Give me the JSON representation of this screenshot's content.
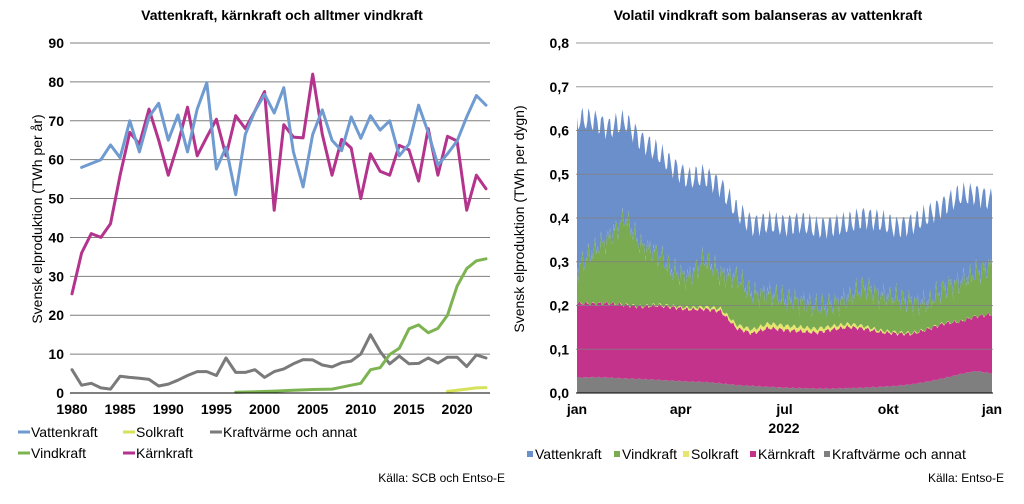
{
  "source_left": "Källa: SCB och Entso-E",
  "source_right": "Källa: Entso-E",
  "chart_data": [
    {
      "type": "line",
      "title": "Vattenkraft, kärnkraft och alltmer vindkraft",
      "xlabel": "",
      "ylabel": "Svensk elproduktion (TWh per år)",
      "xlim": [
        1980,
        2023
      ],
      "ylim": [
        0,
        90
      ],
      "x_ticks": [
        "1980",
        "1985",
        "1990",
        "1995",
        "2000",
        "2005",
        "2010",
        "2015",
        "2020"
      ],
      "y_ticks": [
        "0",
        "10",
        "20",
        "30",
        "40",
        "50",
        "60",
        "70",
        "80",
        "90"
      ],
      "grid": "horizontal",
      "legend_placement": "bottom",
      "series": [
        {
          "name": "Vattenkraft",
          "color": "#6f9bd1",
          "x": [
            1981,
            1983,
            1984,
            1985,
            1986,
            1987,
            1988,
            1989,
            1990,
            1991,
            1992,
            1993,
            1994,
            1995,
            1996,
            1997,
            1998,
            1999,
            2000,
            2001,
            2002,
            2003,
            2004,
            2005,
            2006,
            2007,
            2008,
            2009,
            2010,
            2011,
            2012,
            2013,
            2014,
            2015,
            2016,
            2017,
            2018,
            2019,
            2020,
            2021,
            2022,
            2023
          ],
          "y": [
            58,
            60,
            63.8,
            60.5,
            70,
            62,
            71,
            74.5,
            65,
            71.5,
            62,
            73,
            79.8,
            57.6,
            63.2,
            51,
            66.5,
            72.5,
            76.8,
            72,
            78.5,
            62,
            53,
            66.5,
            72.8,
            65,
            62.3,
            71,
            65.5,
            71.3,
            67.6,
            70,
            61,
            64,
            74,
            67,
            58.6,
            61.5,
            64.8,
            71,
            76.5,
            74
          ]
        },
        {
          "name": "Kärnkraft",
          "color": "#b4338c",
          "x": [
            1980,
            1981,
            1982,
            1983,
            1984,
            1985,
            1986,
            1987,
            1988,
            1989,
            1990,
            1991,
            1992,
            1993,
            1994,
            1995,
            1996,
            1997,
            1998,
            1999,
            2000,
            2001,
            2002,
            2003,
            2004,
            2005,
            2006,
            2007,
            2008,
            2009,
            2010,
            2011,
            2012,
            2013,
            2014,
            2015,
            2016,
            2017,
            2018,
            2019,
            2020,
            2021,
            2022,
            2023
          ],
          "y": [
            25.5,
            36,
            41,
            40,
            43.5,
            56,
            67,
            64,
            73,
            65,
            56,
            64,
            73.5,
            61,
            65.8,
            70.4,
            61,
            71.3,
            68,
            72.5,
            77.5,
            47,
            69,
            65.8,
            65.6,
            82,
            66.5,
            56,
            65.2,
            63,
            50,
            61.5,
            57,
            56,
            63.7,
            62.5,
            54.5,
            68,
            56,
            66,
            64.8,
            47,
            56,
            52.5
          ]
        },
        {
          "name": "Vindkraft",
          "color": "#7db451",
          "x": [
            1997,
            1999,
            2001,
            2003,
            2005,
            2007,
            2008,
            2009,
            2010,
            2011,
            2012,
            2013,
            2014,
            2015,
            2016,
            2017,
            2018,
            2019,
            2020,
            2021,
            2022,
            2023
          ],
          "y": [
            0.2,
            0.3,
            0.5,
            0.7,
            0.9,
            1.0,
            1.5,
            2.0,
            2.5,
            6.0,
            6.5,
            9.9,
            11.5,
            16.5,
            17.5,
            15.5,
            16.6,
            20,
            27.5,
            32,
            34,
            34.5
          ]
        },
        {
          "name": "Solkraft",
          "color": "#d6e35a",
          "x": [
            2019,
            2020,
            2021,
            2022,
            2023
          ],
          "y": [
            0.4,
            0.7,
            1.0,
            1.3,
            1.4
          ]
        },
        {
          "name": "Kraftvärme och annat",
          "color": "#7a7a7a",
          "x": [
            1980,
            1981,
            1982,
            1983,
            1984,
            1985,
            1986,
            1987,
            1988,
            1989,
            1990,
            1991,
            1992,
            1993,
            1994,
            1995,
            1996,
            1997,
            1998,
            1999,
            2000,
            2001,
            2002,
            2003,
            2004,
            2005,
            2006,
            2007,
            2008,
            2009,
            2010,
            2011,
            2012,
            2013,
            2014,
            2015,
            2016,
            2017,
            2018,
            2019,
            2020,
            2021,
            2022,
            2023
          ],
          "y": [
            6,
            2,
            2.5,
            1.3,
            1,
            4.3,
            4,
            3.8,
            3.5,
            1.8,
            2.3,
            3.3,
            4.5,
            5.5,
            5.5,
            4.5,
            9,
            5.3,
            5.3,
            6,
            4,
            5.5,
            6.2,
            7.5,
            8.6,
            8.5,
            7.2,
            6.7,
            7.8,
            8.2,
            10,
            15,
            10.7,
            7.5,
            9.5,
            7.5,
            7.6,
            9,
            7.7,
            9.2,
            9.2,
            6.8,
            9.8,
            9
          ]
        }
      ]
    },
    {
      "type": "area",
      "stacked": true,
      "title": "Volatil vindkraft som balanseras av vattenkraft",
      "xlabel": "2022",
      "ylabel": "Svensk elproduktion (TWh per dygn)",
      "ylim": [
        0,
        0.8
      ],
      "x_ticks": [
        "jan",
        "apr",
        "jul",
        "okt",
        "jan"
      ],
      "y_ticks": [
        "0,0",
        "0,1",
        "0,2",
        "0,3",
        "0,4",
        "0,5",
        "0,6",
        "0,7",
        "0,8"
      ],
      "grid": "horizontal",
      "legend_placement": "bottom",
      "x_weeks": [
        0,
        2,
        4,
        6,
        8,
        10,
        12,
        14,
        16,
        18,
        20,
        22,
        24,
        26,
        28,
        30,
        32,
        34,
        36,
        38,
        40,
        42,
        44,
        46,
        48,
        50,
        52
      ],
      "series": [
        {
          "name": "Kraftvärme och annat",
          "color": "#7f7f7f",
          "values": [
            0.035,
            0.036,
            0.035,
            0.033,
            0.032,
            0.03,
            0.028,
            0.026,
            0.025,
            0.022,
            0.018,
            0.016,
            0.014,
            0.012,
            0.011,
            0.01,
            0.01,
            0.011,
            0.012,
            0.014,
            0.016,
            0.02,
            0.026,
            0.034,
            0.043,
            0.05,
            0.045
          ]
        },
        {
          "name": "Kärnkraft",
          "color": "#c3338c",
          "values": [
            0.17,
            0.168,
            0.17,
            0.168,
            0.165,
            0.17,
            0.168,
            0.165,
            0.167,
            0.165,
            0.13,
            0.12,
            0.135,
            0.132,
            0.13,
            0.128,
            0.135,
            0.14,
            0.135,
            0.125,
            0.12,
            0.115,
            0.12,
            0.125,
            0.12,
            0.125,
            0.135
          ]
        },
        {
          "name": "Solkraft",
          "color": "#e6e66e",
          "values": [
            0.0,
            0.0,
            0.0,
            0.001,
            0.001,
            0.002,
            0.003,
            0.004,
            0.005,
            0.006,
            0.008,
            0.009,
            0.01,
            0.01,
            0.01,
            0.009,
            0.008,
            0.007,
            0.006,
            0.004,
            0.003,
            0.002,
            0.001,
            0.001,
            0.0,
            0.0,
            0.0
          ]
        },
        {
          "name": "Vindkraft",
          "color": "#7bab50",
          "values": [
            0.08,
            0.12,
            0.15,
            0.2,
            0.14,
            0.12,
            0.08,
            0.07,
            0.11,
            0.08,
            0.11,
            0.08,
            0.07,
            0.06,
            0.06,
            0.05,
            0.05,
            0.06,
            0.09,
            0.08,
            0.08,
            0.07,
            0.06,
            0.08,
            0.09,
            0.1,
            0.11
          ]
        },
        {
          "name": "Vattenkraft",
          "color": "#6b8fcb",
          "values": [
            0.34,
            0.3,
            0.25,
            0.22,
            0.24,
            0.23,
            0.24,
            0.225,
            0.19,
            0.2,
            0.15,
            0.16,
            0.16,
            0.17,
            0.18,
            0.18,
            0.18,
            0.17,
            0.16,
            0.17,
            0.16,
            0.18,
            0.2,
            0.19,
            0.2,
            0.18,
            0.15
          ]
        }
      ]
    }
  ]
}
